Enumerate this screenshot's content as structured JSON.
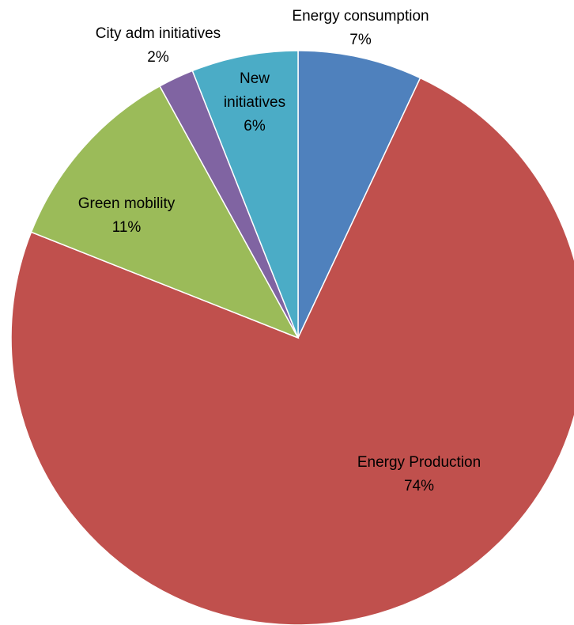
{
  "chart_data": {
    "type": "pie",
    "title": "",
    "start_angle_deg": 0,
    "direction": "clockwise",
    "slices": [
      {
        "label": "Energy consumption",
        "label_lines": [
          "Energy consumption"
        ],
        "percent_label": "7%",
        "value": 7,
        "color": "#4F81BD"
      },
      {
        "label": "Energy Production",
        "label_lines": [
          "Energy Production"
        ],
        "percent_label": "74%",
        "value": 74,
        "color": "#C0504D"
      },
      {
        "label": "Green mobility",
        "label_lines": [
          "Green mobility"
        ],
        "percent_label": "11%",
        "value": 11,
        "color": "#9BBB59"
      },
      {
        "label": "City adm initiatives",
        "label_lines": [
          "City adm initiatives"
        ],
        "percent_label": "2%",
        "value": 2,
        "color": "#8064A2"
      },
      {
        "label": "New initiatives",
        "label_lines": [
          "New",
          "initiatives"
        ],
        "percent_label": "6%",
        "value": 6,
        "color": "#4BACC6"
      }
    ]
  }
}
